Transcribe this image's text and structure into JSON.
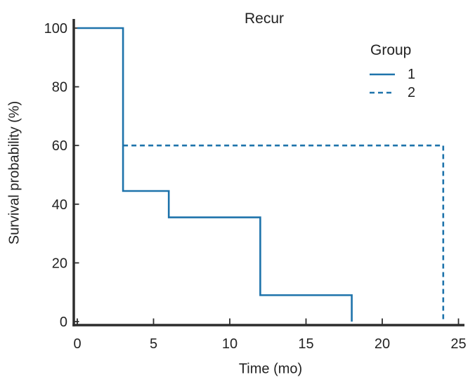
{
  "colors": {
    "line": "#1e73ab",
    "axis": "#2d2d2d",
    "text": "#232323"
  },
  "chart_data": {
    "type": "line",
    "variant": "kaplan-meier-step",
    "title": "Recur",
    "xlabel": "Time (mo)",
    "ylabel": "Survival probability (%)",
    "xlim": [
      0,
      25
    ],
    "ylim": [
      0,
      100
    ],
    "xticks": [
      0,
      5,
      10,
      15,
      20,
      25
    ],
    "yticks": [
      0,
      20,
      40,
      60,
      80,
      100
    ],
    "grid": false,
    "legend": {
      "title": "Group",
      "position": "upper-right",
      "entries": [
        {
          "label": "1",
          "style": "solid"
        },
        {
          "label": "2",
          "style": "dashed"
        }
      ]
    },
    "series": [
      {
        "name": "1",
        "style": "solid",
        "color": "#1e73ab",
        "points": [
          [
            0,
            100
          ],
          [
            3,
            100
          ],
          [
            3,
            44.5
          ],
          [
            6,
            44.5
          ],
          [
            6,
            35.5
          ],
          [
            12,
            35.5
          ],
          [
            12,
            9
          ],
          [
            18,
            9
          ],
          [
            18,
            0
          ]
        ]
      },
      {
        "name": "2",
        "style": "dashed",
        "color": "#1e73ab",
        "points": [
          [
            3,
            60
          ],
          [
            24,
            60
          ],
          [
            24,
            0
          ]
        ]
      }
    ]
  }
}
